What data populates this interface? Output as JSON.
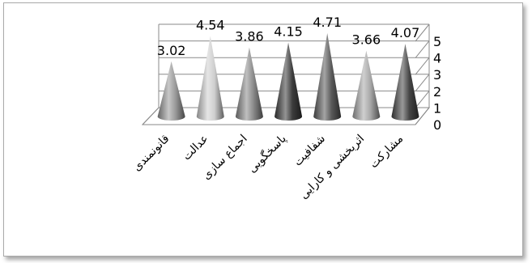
{
  "chart_data": {
    "type": "bar",
    "subtype": "3d-cone",
    "categories": [
      "قانونمندی",
      "عدالت",
      "اجماع سازی",
      "پاسخگویی",
      "شفافیت",
      "اثربخشی و کارایی",
      "مشارکت"
    ],
    "values": [
      3.02,
      4.54,
      3.86,
      4.15,
      4.71,
      3.66,
      4.07
    ],
    "data_labels": [
      "3.02",
      "4.54",
      "3.86",
      "4.15",
      "4.71",
      "3.66",
      "4.07"
    ],
    "colors": [
      "#9a9a9a",
      "#cfcfcf",
      "#8a8a8a",
      "#3c3c3c",
      "#5a5a5a",
      "#a8a8a8",
      "#454545"
    ],
    "ylim": [
      0,
      5
    ],
    "yticks": [
      "0",
      "1",
      "2",
      "3",
      "4",
      "5"
    ],
    "grid": true,
    "legend": "none",
    "title": "",
    "xlabel": "",
    "ylabel": ""
  }
}
